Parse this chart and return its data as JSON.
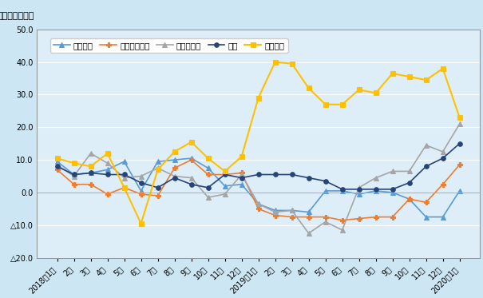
{
  "ylabel": "（前年比、％）",
  "bg_color": "#cce6f4",
  "plot_bg_color": "#deeef8",
  "x_labels": [
    "2018年1月",
    "2月",
    "3月",
    "4月",
    "5月",
    "6月",
    "7月",
    "8月",
    "9月",
    "10月",
    "11月",
    "12月",
    "2019年1月",
    "2月",
    "3月",
    "4月",
    "5月",
    "6月",
    "7月",
    "8月",
    "9月",
    "10月",
    "11月",
    "12月",
    "2020年1月"
  ],
  "ylim": [
    -20.0,
    50.0
  ],
  "yticks": [
    -20.0,
    -10.0,
    0.0,
    10.0,
    20.0,
    30.0,
    40.0,
    50.0
  ],
  "series_order": [
    "世界全体",
    "インドネシア",
    "マレーシア",
    "タイ",
    "ベトナム"
  ],
  "series": {
    "世界全体": {
      "color": "#5B9BD5",
      "marker": "^",
      "markersize": 4,
      "linewidth": 1.2,
      "values": [
        9.5,
        5.5,
        6.0,
        7.0,
        9.5,
        0.5,
        9.5,
        10.0,
        10.5,
        7.5,
        2.0,
        2.5,
        -3.5,
        -5.5,
        -5.5,
        -6.0,
        0.5,
        0.5,
        -0.5,
        0.5,
        0.0,
        -2.0,
        -7.5,
        -7.5,
        0.5
      ]
    },
    "インドネシア": {
      "color": "#ED7D31",
      "marker": "P",
      "markersize": 4,
      "linewidth": 1.2,
      "values": [
        7.0,
        2.5,
        2.5,
        -0.5,
        1.5,
        -0.5,
        -1.0,
        7.5,
        10.0,
        5.5,
        5.5,
        6.0,
        -5.0,
        -7.0,
        -7.5,
        -7.5,
        -7.5,
        -8.5,
        -8.0,
        -7.5,
        -7.5,
        -2.0,
        -3.0,
        2.5,
        8.5
      ]
    },
    "マレーシア": {
      "color": "#A5A5A5",
      "marker": "^",
      "markersize": 4,
      "linewidth": 1.2,
      "values": [
        8.5,
        5.0,
        12.0,
        9.0,
        4.5,
        5.0,
        7.5,
        5.0,
        4.5,
        -1.5,
        -0.5,
        5.5,
        -3.5,
        -6.0,
        -5.5,
        -12.5,
        -9.0,
        -11.5,
        1.5,
        4.5,
        6.5,
        6.5,
        14.5,
        12.5,
        21.0
      ]
    },
    "タイ": {
      "color": "#264478",
      "marker": "o",
      "markersize": 4,
      "linewidth": 1.2,
      "values": [
        8.0,
        5.5,
        6.0,
        5.5,
        5.5,
        3.0,
        1.5,
        4.5,
        2.5,
        1.5,
        5.5,
        4.5,
        5.5,
        5.5,
        5.5,
        4.5,
        3.5,
        1.0,
        1.0,
        1.0,
        1.0,
        3.0,
        8.0,
        10.5,
        15.0
      ]
    },
    "ベトナム": {
      "color": "#FFC000",
      "marker": "s",
      "markersize": 4,
      "linewidth": 1.5,
      "values": [
        10.5,
        9.0,
        8.0,
        12.0,
        1.5,
        -9.5,
        7.0,
        12.5,
        15.5,
        10.5,
        6.5,
        11.0,
        29.0,
        40.0,
        39.5,
        32.0,
        27.0,
        27.0,
        31.5,
        30.5,
        36.5,
        35.5,
        34.5,
        38.0,
        23.0
      ]
    }
  }
}
